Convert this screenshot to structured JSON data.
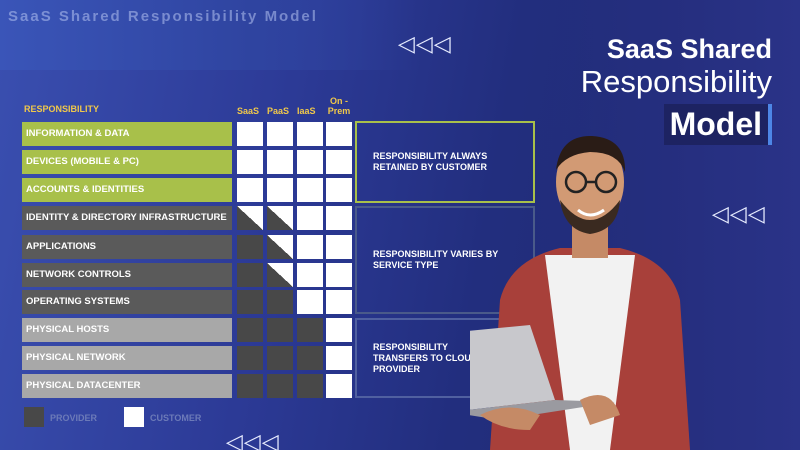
{
  "header": {
    "text": "SaaS Shared Responsibility Model"
  },
  "title": {
    "line1": "SaaS Shared",
    "line2": "Responsibility",
    "line3": "Model"
  },
  "arrows": {
    "glyph": "◁◁◁"
  },
  "table": {
    "responsibility_header": "RESPONSIBILITY",
    "columns": [
      "SaaS",
      "PaaS",
      "IaaS",
      "On - Prem"
    ],
    "rows": [
      {
        "label": "INFORMATION & DATA",
        "cells": [
          "c",
          "c",
          "c",
          "c"
        ]
      },
      {
        "label": "DEVICES (MOBILE & PC)",
        "cells": [
          "c",
          "c",
          "c",
          "c"
        ]
      },
      {
        "label": "ACCOUNTS & IDENTITIES",
        "cells": [
          "c",
          "c",
          "c",
          "c"
        ]
      },
      {
        "label": "IDENTITY & DIRECTORY INFRASTRUCTURE",
        "cells": [
          "s",
          "s",
          "c",
          "c"
        ]
      },
      {
        "label": "APPLICATIONS",
        "cells": [
          "p",
          "s",
          "c",
          "c"
        ]
      },
      {
        "label": "NETWORK CONTROLS",
        "cells": [
          "p",
          "s",
          "c",
          "c"
        ]
      },
      {
        "label": "OPERATING SYSTEMS",
        "cells": [
          "p",
          "p",
          "c",
          "c"
        ]
      },
      {
        "label": "PHYSICAL HOSTS",
        "cells": [
          "p",
          "p",
          "p",
          "c"
        ]
      },
      {
        "label": "PHYSICAL NETWORK",
        "cells": [
          "p",
          "p",
          "p",
          "c"
        ]
      },
      {
        "label": "PHYSICAL DATACENTER",
        "cells": [
          "p",
          "p",
          "p",
          "c"
        ]
      }
    ],
    "groups": [
      {
        "text": "RESPONSIBILITY ALWAYS RETAINED BY CUSTOMER",
        "color": "#a8c04a"
      },
      {
        "text": "RESPONSIBILITY VARIES BY SERVICE TYPE",
        "color": "#4a5a8a"
      },
      {
        "text": "RESPONSIBILITY TRANSFERS TO CLOUD PROVIDER",
        "color": "#5060a0"
      }
    ]
  },
  "legend": {
    "provider": "PROVIDER",
    "customer": "CUSTOMER"
  },
  "colors": {
    "group1": "#a8c04a",
    "group2": "#5a5a5a",
    "group3": "#a8a8a8",
    "provider": "#484848",
    "customer": "#ffffff"
  }
}
